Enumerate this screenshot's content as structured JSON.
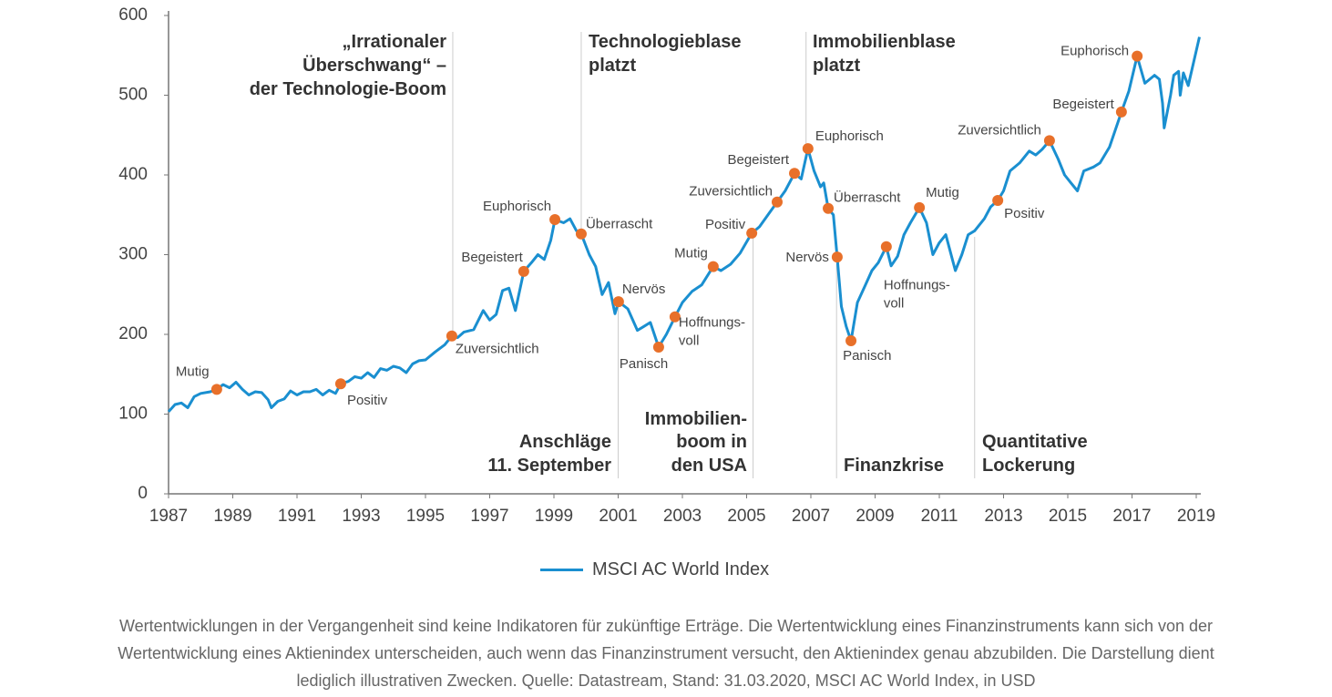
{
  "chart_data": {
    "type": "line",
    "title": "",
    "xlabel": "",
    "ylabel": "",
    "xlim": [
      1987,
      2019
    ],
    "ylim": [
      0,
      600
    ],
    "x_ticks": [
      1987,
      1989,
      1991,
      1993,
      1995,
      1997,
      1999,
      2001,
      2003,
      2005,
      2007,
      2009,
      2011,
      2013,
      2015,
      2017,
      2019
    ],
    "y_ticks": [
      0,
      100,
      200,
      300,
      400,
      500,
      600
    ],
    "grid": false,
    "colors": {
      "line": "#1a8fd0",
      "marker": "#e8702a",
      "text": "#444444"
    },
    "series": [
      {
        "name": "MSCI AC World Index",
        "points": [
          [
            1987,
            103
          ],
          [
            1987.2,
            112
          ],
          [
            1987.4,
            114
          ],
          [
            1987.6,
            108
          ],
          [
            1987.8,
            122
          ],
          [
            1988.0,
            126
          ],
          [
            1988.3,
            128
          ],
          [
            1988.5,
            131
          ],
          [
            1988.7,
            137
          ],
          [
            1988.9,
            133
          ],
          [
            1989.1,
            140
          ],
          [
            1989.3,
            131
          ],
          [
            1989.5,
            124
          ],
          [
            1989.7,
            128
          ],
          [
            1989.9,
            127
          ],
          [
            1990.1,
            118
          ],
          [
            1990.2,
            108
          ],
          [
            1990.4,
            116
          ],
          [
            1990.6,
            119
          ],
          [
            1990.8,
            129
          ],
          [
            1991.0,
            124
          ],
          [
            1991.2,
            128
          ],
          [
            1991.4,
            128
          ],
          [
            1991.6,
            131
          ],
          [
            1991.8,
            124
          ],
          [
            1992.0,
            130
          ],
          [
            1992.2,
            126
          ],
          [
            1992.36,
            138
          ],
          [
            1992.6,
            141
          ],
          [
            1992.8,
            147
          ],
          [
            1993.0,
            145
          ],
          [
            1993.2,
            152
          ],
          [
            1993.4,
            146
          ],
          [
            1993.6,
            157
          ],
          [
            1993.8,
            155
          ],
          [
            1994.0,
            160
          ],
          [
            1994.2,
            158
          ],
          [
            1994.4,
            152
          ],
          [
            1994.6,
            163
          ],
          [
            1994.8,
            167
          ],
          [
            1995.0,
            168
          ],
          [
            1995.3,
            178
          ],
          [
            1995.6,
            187
          ],
          [
            1995.82,
            198
          ],
          [
            1996.0,
            196
          ],
          [
            1996.2,
            203
          ],
          [
            1996.5,
            206
          ],
          [
            1996.8,
            230
          ],
          [
            1997.0,
            218
          ],
          [
            1997.2,
            225
          ],
          [
            1997.4,
            255
          ],
          [
            1997.6,
            258
          ],
          [
            1997.8,
            230
          ],
          [
            1998.06,
            279
          ],
          [
            1998.3,
            290
          ],
          [
            1998.5,
            300
          ],
          [
            1998.7,
            294
          ],
          [
            1998.9,
            318
          ],
          [
            1999.03,
            344
          ],
          [
            1999.3,
            340
          ],
          [
            1999.5,
            345
          ],
          [
            1999.7,
            330
          ],
          [
            1999.85,
            326
          ],
          [
            2000.1,
            300
          ],
          [
            2000.3,
            285
          ],
          [
            2000.5,
            250
          ],
          [
            2000.7,
            265
          ],
          [
            2000.9,
            226
          ],
          [
            2001.01,
            241
          ],
          [
            2001.3,
            232
          ],
          [
            2001.6,
            205
          ],
          [
            2001.8,
            210
          ],
          [
            2002.0,
            215
          ],
          [
            2002.26,
            184
          ],
          [
            2002.5,
            200
          ],
          [
            2002.77,
            222
          ],
          [
            2003.0,
            240
          ],
          [
            2003.3,
            254
          ],
          [
            2003.6,
            262
          ],
          [
            2003.96,
            285
          ],
          [
            2004.2,
            280
          ],
          [
            2004.5,
            288
          ],
          [
            2004.8,
            302
          ],
          [
            2005.16,
            327
          ],
          [
            2005.4,
            335
          ],
          [
            2005.7,
            352
          ],
          [
            2005.95,
            366
          ],
          [
            2006.2,
            380
          ],
          [
            2006.49,
            402
          ],
          [
            2006.7,
            395
          ],
          [
            2006.91,
            433
          ],
          [
            2007.1,
            405
          ],
          [
            2007.3,
            385
          ],
          [
            2007.4,
            390
          ],
          [
            2007.54,
            358
          ],
          [
            2007.7,
            350
          ],
          [
            2007.82,
            297
          ],
          [
            2007.95,
            235
          ],
          [
            2008.1,
            210
          ],
          [
            2008.25,
            192
          ],
          [
            2008.45,
            240
          ],
          [
            2008.7,
            262
          ],
          [
            2008.9,
            280
          ],
          [
            2009.1,
            290
          ],
          [
            2009.35,
            310
          ],
          [
            2009.5,
            286
          ],
          [
            2009.7,
            298
          ],
          [
            2009.9,
            325
          ],
          [
            2010.1,
            340
          ],
          [
            2010.38,
            359
          ],
          [
            2010.6,
            340
          ],
          [
            2010.8,
            300
          ],
          [
            2011.0,
            315
          ],
          [
            2011.2,
            325
          ],
          [
            2011.5,
            280
          ],
          [
            2011.7,
            300
          ],
          [
            2011.9,
            325
          ],
          [
            2012.1,
            330
          ],
          [
            2012.4,
            345
          ],
          [
            2012.6,
            360
          ],
          [
            2012.82,
            368
          ],
          [
            2013.0,
            380
          ],
          [
            2013.2,
            405
          ],
          [
            2013.5,
            415
          ],
          [
            2013.8,
            430
          ],
          [
            2014.0,
            425
          ],
          [
            2014.2,
            432
          ],
          [
            2014.43,
            443
          ],
          [
            2014.7,
            420
          ],
          [
            2014.9,
            400
          ],
          [
            2015.1,
            390
          ],
          [
            2015.3,
            380
          ],
          [
            2015.5,
            405
          ],
          [
            2015.8,
            410
          ],
          [
            2016.0,
            415
          ],
          [
            2016.3,
            435
          ],
          [
            2016.67,
            479
          ],
          [
            2016.9,
            505
          ],
          [
            2017.16,
            549
          ],
          [
            2017.4,
            515
          ],
          [
            2017.7,
            525
          ],
          [
            2017.85,
            520
          ],
          [
            2017.95,
            490
          ],
          [
            2018.0,
            459
          ],
          [
            2018.2,
            500
          ],
          [
            2018.3,
            525
          ],
          [
            2018.45,
            530
          ],
          [
            2018.5,
            500
          ],
          [
            2018.6,
            528
          ],
          [
            2018.75,
            512
          ],
          [
            2019.1,
            573
          ]
        ]
      }
    ],
    "markers": [
      {
        "label": "Mutig",
        "x": 1988.5,
        "y": 131
      },
      {
        "label": "Positiv",
        "x": 1992.36,
        "y": 138
      },
      {
        "label": "Zuversichtlich",
        "x": 1995.82,
        "y": 198
      },
      {
        "label": "Begeistert",
        "x": 1998.06,
        "y": 279
      },
      {
        "label": "Euphorisch",
        "x": 1999.03,
        "y": 344
      },
      {
        "label": "Überrascht",
        "x": 1999.85,
        "y": 326
      },
      {
        "label": "Nervös",
        "x": 2001.01,
        "y": 241
      },
      {
        "label": "Panisch",
        "x": 2002.26,
        "y": 184
      },
      {
        "label": "Hoffnungs-|voll",
        "x": 2002.77,
        "y": 222
      },
      {
        "label": "Mutig",
        "x": 2003.96,
        "y": 285
      },
      {
        "label": "Positiv",
        "x": 2005.16,
        "y": 327
      },
      {
        "label": "Zuversichtlich",
        "x": 2005.95,
        "y": 366
      },
      {
        "label": "Begeistert",
        "x": 2006.49,
        "y": 402
      },
      {
        "label": "Euphorisch",
        "x": 2006.91,
        "y": 433
      },
      {
        "label": "Überrascht",
        "x": 2007.54,
        "y": 358
      },
      {
        "label": "Nervös",
        "x": 2007.82,
        "y": 297
      },
      {
        "label": "Panisch",
        "x": 2008.25,
        "y": 192
      },
      {
        "label": "Hoffnungs-|voll",
        "x": 2009.35,
        "y": 310
      },
      {
        "label": "Mutig",
        "x": 2010.38,
        "y": 359
      },
      {
        "label": "Positiv",
        "x": 2012.82,
        "y": 368
      },
      {
        "label": "Zuversichtlich",
        "x": 2014.43,
        "y": 443
      },
      {
        "label": "Begeistert",
        "x": 2016.67,
        "y": 479
      },
      {
        "label": "Euphorisch",
        "x": 2017.16,
        "y": 549
      }
    ],
    "annotations": [
      {
        "lines": [
          "„Irrationaler",
          "Überschwang“ –",
          "der Technologie-Boom"
        ],
        "x": 1995.85
      },
      {
        "lines": [
          "Technologieblase",
          "platzt"
        ],
        "x": 1999.85
      },
      {
        "lines": [
          "Anschläge",
          "11. September"
        ],
        "x": 2001.0
      },
      {
        "lines": [
          "Immobilien-",
          "boom in",
          "den USA"
        ],
        "x": 2005.2
      },
      {
        "lines": [
          "Immobilienblase",
          "platzt"
        ],
        "x": 2006.85
      },
      {
        "lines": [
          "Finanzkrise"
        ],
        "x": 2007.8
      },
      {
        "lines": [
          "Quantitative",
          "Lockerung"
        ],
        "x": 2012.1
      }
    ],
    "legend": {
      "label": "MSCI AC World Index",
      "placement": "bottom-center"
    }
  },
  "footnote": {
    "lines": [
      "Wertentwicklungen in der Vergangenheit sind keine Indikatoren für zukünftige Erträge. Die Wertentwicklung eines Finanzinstruments kann sich von der",
      "Wertentwicklung eines Aktienindex unterscheiden, auch wenn das Finanzinstrument versucht, den Aktienindex genau abzubilden. Die Darstellung dient",
      "lediglich illustrativen Zwecken. Quelle: Datastream, Stand: 31.03.2020, MSCI AC World Index, in USD"
    ]
  }
}
